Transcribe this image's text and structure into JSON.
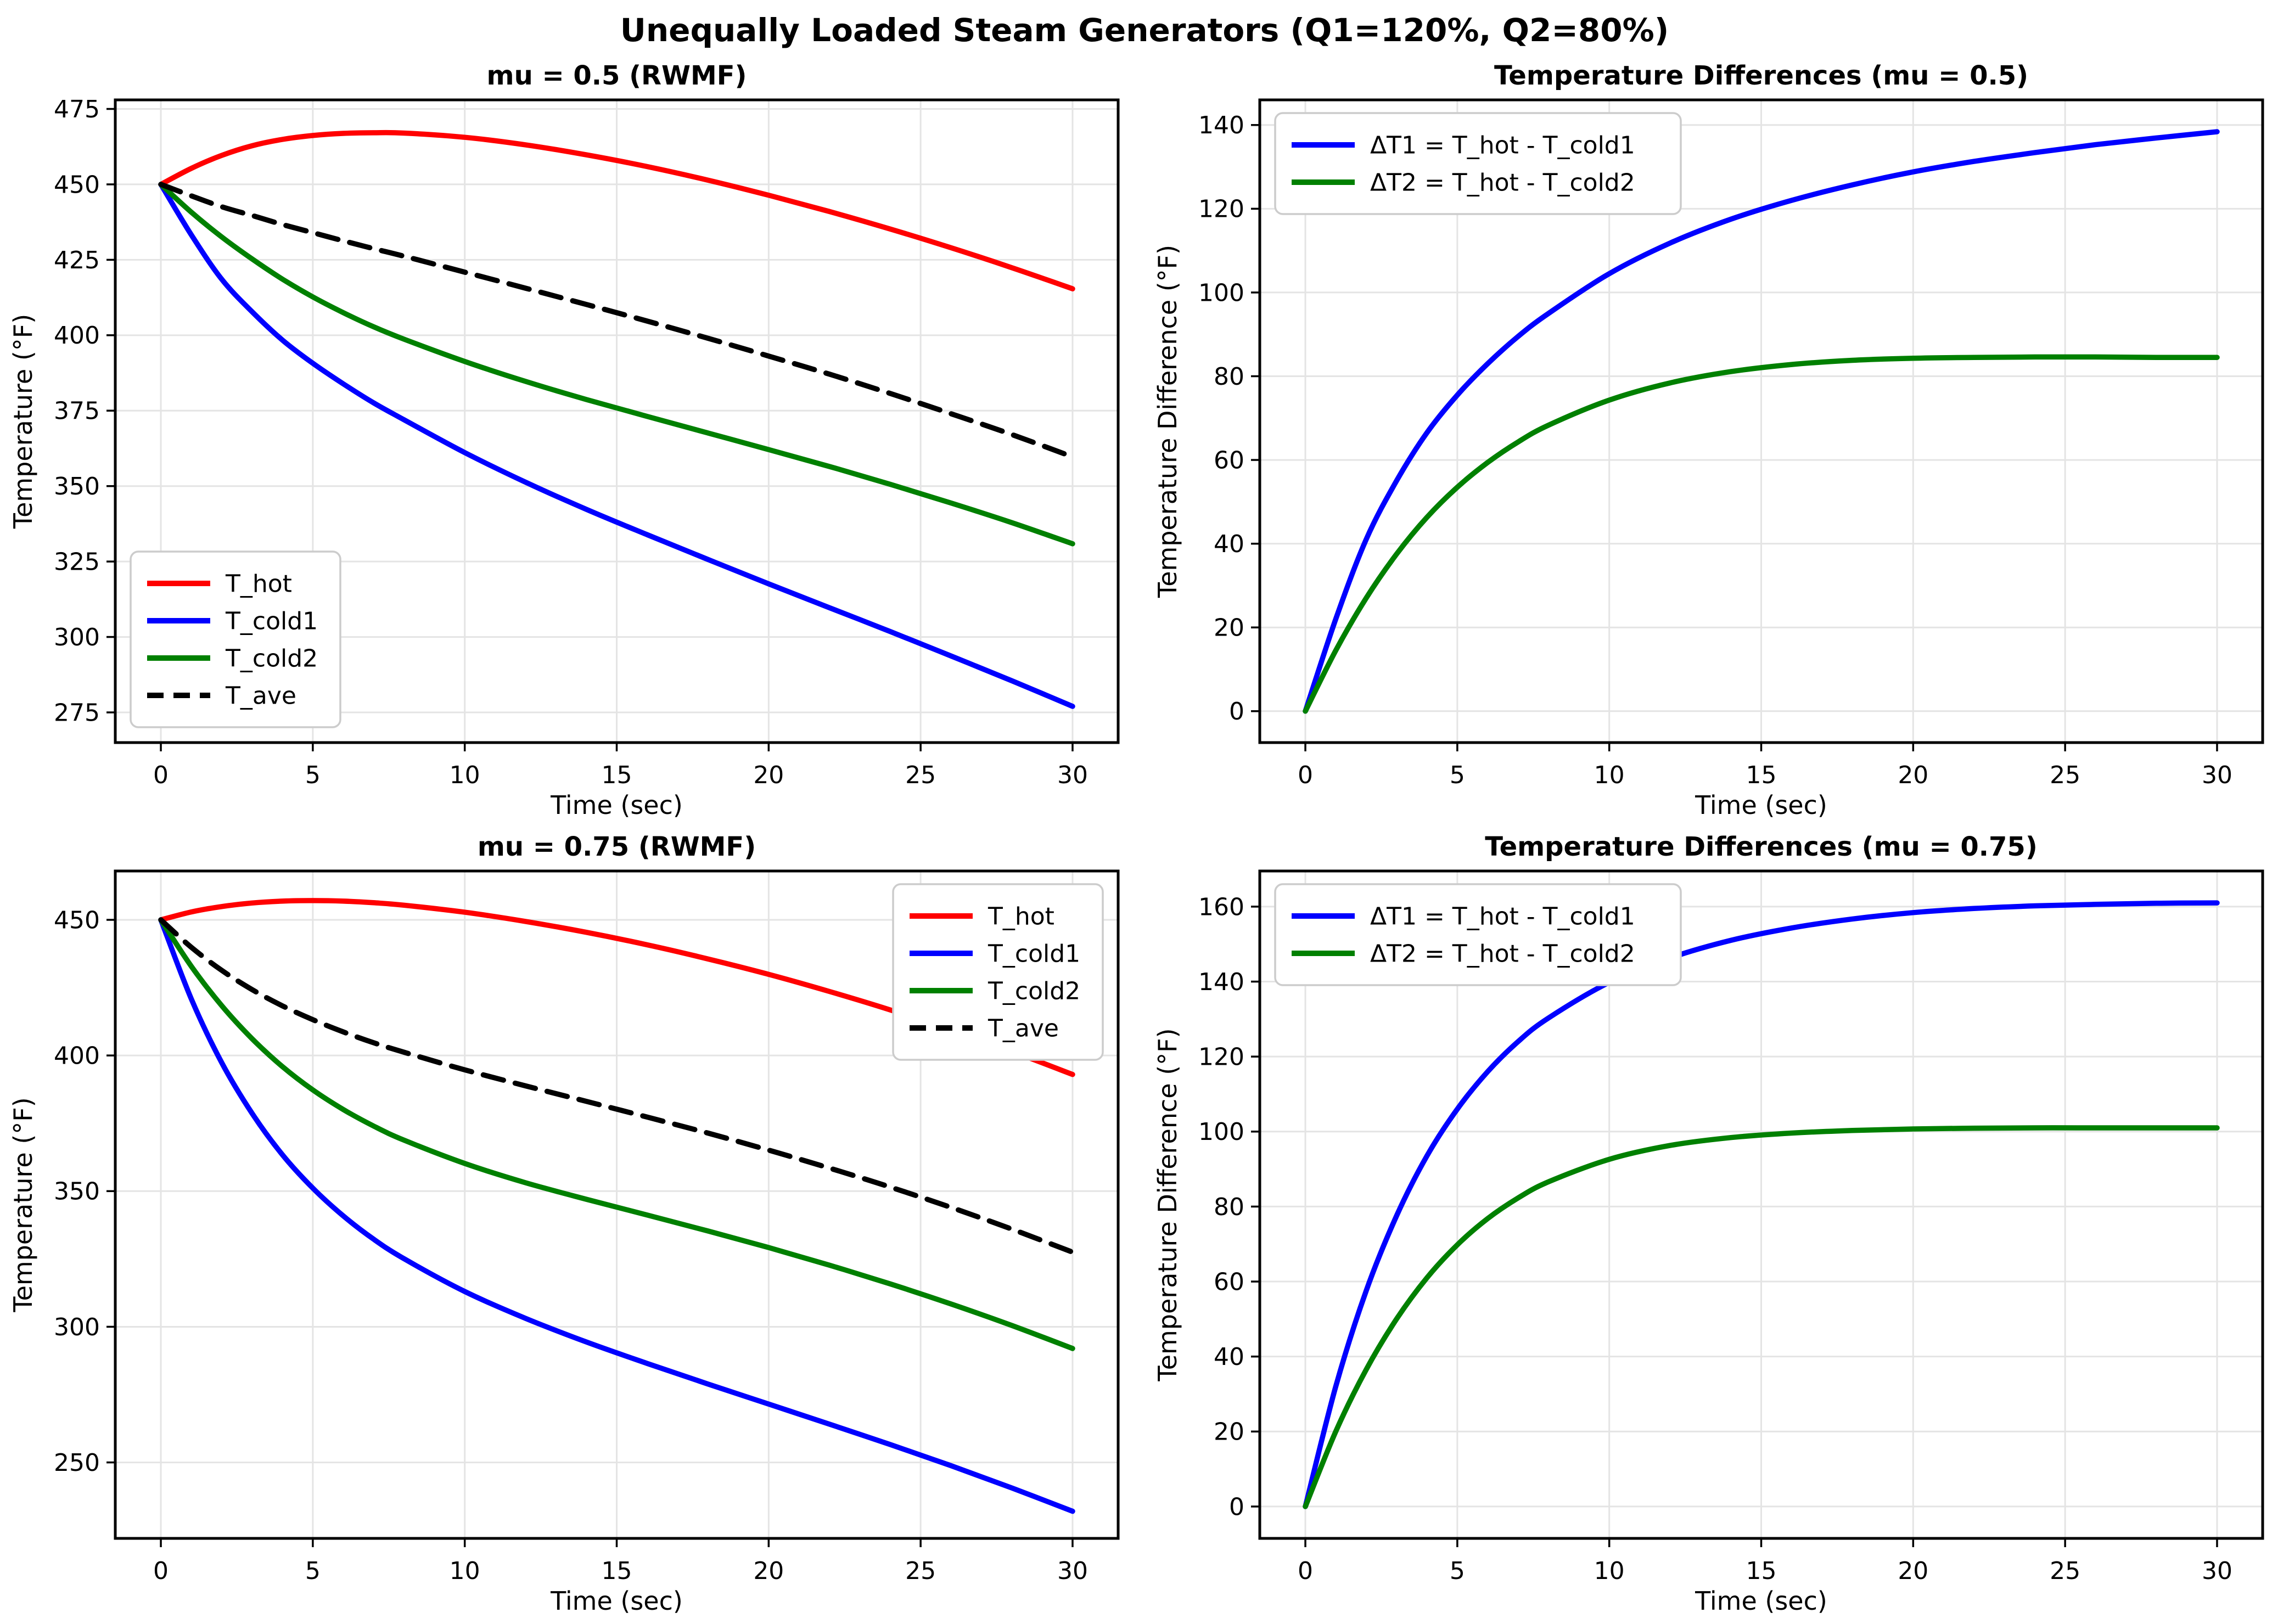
{
  "figure": {
    "suptitle": "Unequally Loaded Steam Generators (Q1=120%, Q2=80%)",
    "background": "#ffffff"
  },
  "colors": {
    "hot": "#ff0000",
    "cold1": "#0000ff",
    "cold2": "#008000",
    "average": "#000000",
    "grid": "#e4e4e4",
    "spine": "#000000",
    "legend_border": "#cccccc",
    "legend_background": "#ffffff"
  },
  "chart_data": [
    {
      "id": "temperatures-mu-05",
      "type": "line",
      "title": "mu = 0.5 (RWMF)",
      "xlabel": "Time (sec)",
      "ylabel": "Temperature (°F)",
      "xlim": [
        -1.5,
        31.5
      ],
      "ylim": [
        265,
        478
      ],
      "xticks": [
        0,
        5,
        10,
        15,
        20,
        25,
        30
      ],
      "yticks": [
        275,
        300,
        325,
        350,
        375,
        400,
        425,
        450,
        475
      ],
      "grid": true,
      "legend_position": "lower-left",
      "x": [
        0,
        1,
        2,
        3,
        4,
        5,
        6,
        7,
        8,
        10,
        12,
        14,
        16,
        18,
        20,
        22,
        24,
        26,
        28,
        30
      ],
      "series": [
        {
          "name": "T_hot",
          "color": "#ff0000",
          "dash": false,
          "values": [
            450,
            455.3,
            459.6,
            462.8,
            464.9,
            466.2,
            466.9,
            467.1,
            467.0,
            465.6,
            463.1,
            459.8,
            455.9,
            451.4,
            446.4,
            441.0,
            435.2,
            429.0,
            422.4,
            415.4
          ]
        },
        {
          "name": "T_cold1",
          "color": "#0000ff",
          "dash": false,
          "values": [
            450,
            433.3,
            418.6,
            407.8,
            398.4,
            390.7,
            383.9,
            377.6,
            372.0,
            361.1,
            351.3,
            342.3,
            333.9,
            325.7,
            317.6,
            309.7,
            301.8,
            293.7,
            285.5,
            277.0
          ]
        },
        {
          "name": "T_cold2",
          "color": "#008000",
          "dash": false,
          "values": [
            450,
            440.8,
            432.6,
            425.3,
            418.6,
            412.7,
            407.5,
            402.8,
            398.7,
            391.3,
            384.7,
            378.7,
            373.1,
            367.6,
            362.1,
            356.5,
            350.6,
            344.4,
            337.9,
            330.9
          ]
        },
        {
          "name": "T_ave",
          "color": "#000000",
          "dash": true,
          "values": [
            450,
            446.2,
            442.6,
            439.7,
            436.7,
            434.0,
            431.3,
            428.7,
            426.2,
            420.9,
            415.6,
            410.2,
            404.7,
            399.0,
            393.1,
            387.1,
            380.7,
            374.0,
            367.1,
            359.7
          ]
        }
      ]
    },
    {
      "id": "differences-mu-05",
      "type": "line",
      "title": "Temperature Differences (mu = 0.5)",
      "xlabel": "Time (sec)",
      "ylabel": "Temperature Difference (°F)",
      "xlim": [
        -1.5,
        31.5
      ],
      "ylim": [
        -7.5,
        146
      ],
      "xticks": [
        0,
        5,
        10,
        15,
        20,
        25,
        30
      ],
      "yticks": [
        0,
        20,
        40,
        60,
        80,
        100,
        120,
        140
      ],
      "grid": true,
      "legend_position": "upper-left",
      "x": [
        0,
        1,
        2,
        3,
        4,
        5,
        6,
        7,
        8,
        10,
        12,
        14,
        16,
        18,
        20,
        22,
        24,
        26,
        28,
        30
      ],
      "series": [
        {
          "name": "ΔT1 = T_hot - T_cold1",
          "color": "#0000ff",
          "dash": false,
          "values": [
            0,
            22,
            41,
            55,
            66.5,
            75.5,
            83,
            89.5,
            95,
            104.5,
            111.8,
            117.5,
            122,
            125.7,
            128.8,
            131.3,
            133.4,
            135.3,
            136.9,
            138.4
          ]
        },
        {
          "name": "ΔT2 = T_hot - T_cold2",
          "color": "#008000",
          "dash": false,
          "values": [
            0,
            14.5,
            27,
            37.5,
            46.3,
            53.5,
            59.4,
            64.3,
            68.3,
            74.3,
            78.4,
            81.1,
            82.8,
            83.8,
            84.3,
            84.5,
            84.6,
            84.6,
            84.5,
            84.5
          ]
        }
      ]
    },
    {
      "id": "temperatures-mu-075",
      "type": "line",
      "title": "mu = 0.75 (RWMF)",
      "xlabel": "Time (sec)",
      "ylabel": "Temperature (°F)",
      "xlim": [
        -1.5,
        31.5
      ],
      "ylim": [
        222,
        468
      ],
      "xticks": [
        0,
        5,
        10,
        15,
        20,
        25,
        30
      ],
      "yticks": [
        250,
        300,
        350,
        400,
        450
      ],
      "grid": true,
      "legend_position": "upper-right",
      "x": [
        0,
        1,
        2,
        3,
        4,
        5,
        6,
        7,
        8,
        10,
        12,
        14,
        16,
        18,
        20,
        22,
        24,
        26,
        28,
        30
      ],
      "series": [
        {
          "name": "T_hot",
          "color": "#ff0000",
          "dash": false,
          "values": [
            450,
            452.9,
            454.9,
            456.2,
            456.9,
            457.1,
            456.9,
            456.3,
            455.4,
            452.8,
            449.4,
            445.4,
            440.8,
            435.6,
            429.9,
            423.6,
            416.8,
            409.4,
            401.5,
            393.0
          ]
        },
        {
          "name": "T_cold1",
          "color": "#0000ff",
          "dash": false,
          "values": [
            450,
            420.9,
            397.4,
            378.7,
            363.4,
            351.1,
            340.9,
            332.3,
            325.1,
            313.0,
            303.1,
            294.4,
            286.5,
            278.9,
            271.5,
            264.1,
            256.6,
            248.8,
            240.6,
            232.0
          ]
        },
        {
          "name": "T_cold2",
          "color": "#008000",
          "dash": false,
          "values": [
            450,
            432.9,
            418.4,
            406.2,
            395.9,
            387.3,
            380.1,
            374.0,
            368.8,
            360.2,
            353.1,
            347.0,
            341.2,
            335.3,
            329.2,
            322.7,
            315.8,
            308.4,
            300.5,
            292.0
          ]
        },
        {
          "name": "T_ave",
          "color": "#000000",
          "dash": true,
          "values": [
            450,
            439.9,
            431.4,
            424.3,
            418.3,
            413.2,
            408.7,
            404.7,
            401.2,
            394.7,
            388.8,
            383.1,
            377.3,
            371.4,
            365.1,
            358.5,
            351.5,
            344.0,
            336.0,
            327.5
          ]
        }
      ]
    },
    {
      "id": "differences-mu-075",
      "type": "line",
      "title": "Temperature Differences (mu = 0.75)",
      "xlabel": "Time (sec)",
      "ylabel": "Temperature Difference (°F)",
      "xlim": [
        -1.5,
        31.5
      ],
      "ylim": [
        -8.5,
        169.5
      ],
      "xticks": [
        0,
        5,
        10,
        15,
        20,
        25,
        30
      ],
      "yticks": [
        0,
        20,
        40,
        60,
        80,
        100,
        120,
        140,
        160
      ],
      "grid": true,
      "legend_position": "upper-left",
      "x": [
        0,
        1,
        2,
        3,
        4,
        5,
        6,
        7,
        8,
        10,
        12,
        14,
        16,
        18,
        20,
        22,
        24,
        26,
        28,
        30
      ],
      "series": [
        {
          "name": "ΔT1 = T_hot - T_cold1",
          "color": "#0000ff",
          "dash": false,
          "values": [
            0,
            32,
            57.5,
            77.5,
            93.5,
            106,
            116,
            124,
            130.3,
            139.8,
            146.3,
            151,
            154.3,
            156.7,
            158.4,
            159.5,
            160.2,
            160.6,
            160.9,
            161.0
          ]
        },
        {
          "name": "ΔT2 = T_hot - T_cold2",
          "color": "#008000",
          "dash": false,
          "values": [
            0,
            20,
            36.5,
            50,
            61,
            69.8,
            76.8,
            82.3,
            86.6,
            92.6,
            96.3,
            98.4,
            99.6,
            100.3,
            100.7,
            100.9,
            101.0,
            101.0,
            101.0,
            101.0
          ]
        }
      ]
    }
  ]
}
